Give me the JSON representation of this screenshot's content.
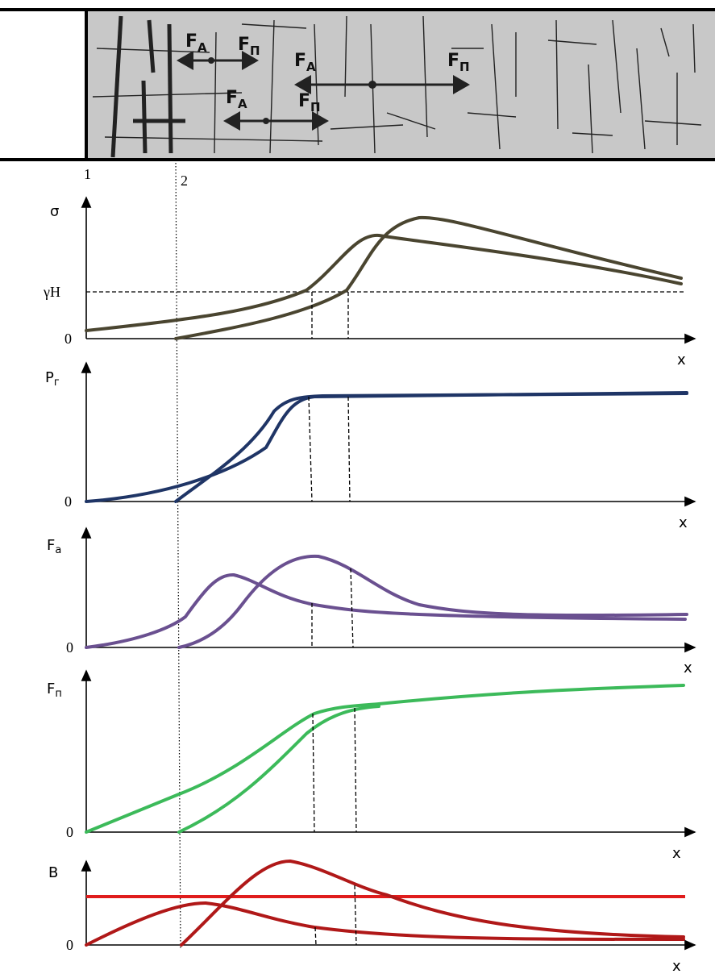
{
  "section_marks": [
    "1",
    "2"
  ],
  "forces": [
    {
      "symbol": "F",
      "subscript": "A"
    },
    {
      "symbol": "F",
      "subscript": "П"
    },
    {
      "symbol": "F",
      "subscript": "A"
    },
    {
      "symbol": "F",
      "subscript": "П"
    },
    {
      "symbol": "F",
      "subscript": "A"
    },
    {
      "symbol": "F",
      "subscript": "П"
    }
  ],
  "plots": [
    {
      "y_label": {
        "symbol": "σ"
      },
      "level_label": "γH",
      "origin": "0",
      "x_label": "x"
    },
    {
      "y_label": {
        "symbol": "P",
        "subscript": "г"
      },
      "origin": "0",
      "x_label": "x"
    },
    {
      "y_label": {
        "symbol": "F",
        "subscript": "a"
      },
      "origin": "0",
      "x_label": "x"
    },
    {
      "y_label": {
        "symbol": "F",
        "subscript": "п"
      },
      "origin": "0",
      "x_label": "x"
    },
    {
      "y_label": {
        "symbol": "В"
      },
      "origin": "0",
      "x_label": "x"
    }
  ]
}
